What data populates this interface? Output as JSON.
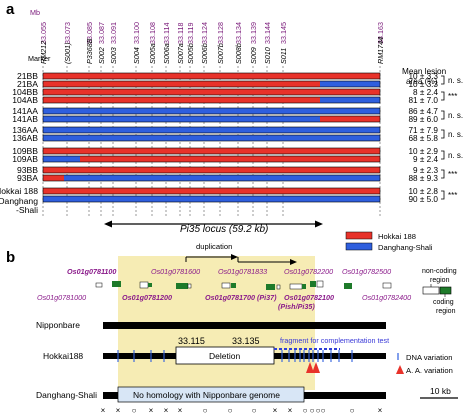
{
  "panel_a": {
    "label": "a",
    "mb_header": "Mb",
    "marker_header": "Marker",
    "lesion_header_line1": "Mean lesion",
    "lesion_header_line2": "area (%)",
    "markers": [
      {
        "mb": "33.055",
        "name": "RM212"
      },
      {
        "mb": "33.073",
        "name": "(S001)"
      },
      {
        "mb": "33.085",
        "name": "P3368B"
      },
      {
        "mb": "33.087",
        "name": "S002"
      },
      {
        "mb": "33.091",
        "name": "S003"
      },
      {
        "mb": "33.100",
        "name": "S004"
      },
      {
        "mb": "33.108",
        "name": "S005a"
      },
      {
        "mb": "33.114",
        "name": "S006a"
      },
      {
        "mb": "33.118",
        "name": "S007a"
      },
      {
        "mb": "33.119",
        "name": "S005b"
      },
      {
        "mb": "33.124",
        "name": "S006b"
      },
      {
        "mb": "33.128",
        "name": "S007b"
      },
      {
        "mb": "33.134",
        "name": "S008b"
      },
      {
        "mb": "33.139",
        "name": "S009"
      },
      {
        "mb": "33.144",
        "name": "S010"
      },
      {
        "mb": "33.145",
        "name": "S011"
      },
      {
        "mb": "33.163",
        "name": "RM1744"
      }
    ],
    "rows": [
      {
        "name": "21BB",
        "lesion": "10 ± 3.3"
      },
      {
        "name": "21BA",
        "lesion": "10 ± 3.3"
      },
      {
        "name": "104BB",
        "lesion": "8 ± 2.4"
      },
      {
        "name": "104AB",
        "lesion": "81 ± 7.0"
      },
      {
        "name": "141AA",
        "lesion": "86 ± 4.7"
      },
      {
        "name": "141AB",
        "lesion": "89 ± 6.0"
      },
      {
        "name": "136AA",
        "lesion": "71 ± 7.9"
      },
      {
        "name": "136AB",
        "lesion": "68 ± 5.8"
      },
      {
        "name": "109BB",
        "lesion": "10 ± 2.9"
      },
      {
        "name": "109AB",
        "lesion": "9 ± 2.4"
      },
      {
        "name": "93BB",
        "lesion": "9 ± 2.3"
      },
      {
        "name": "93BA",
        "lesion": "88 ± 9.3"
      },
      {
        "name": "Hokkai 188",
        "lesion": "10 ± 2.8"
      },
      {
        "name": "Danghang-Shali",
        "lesion": "90 ± 5.0"
      }
    ],
    "row_labels": {
      "hokkai_line1": "Hokkai 188",
      "dang_line1": "Danghang",
      "dang_line2": "-Shali"
    },
    "significance": [
      "n. s.",
      "***",
      "n. s.",
      "n. s.",
      "n. s.",
      "***",
      "***"
    ],
    "locus_label": "Pi35 locus (59.2 kb)",
    "legend": {
      "hokkai": "Hokkai 188",
      "dang": "Danghang-Shali",
      "hokkai_color": "#e8322a",
      "dang_color": "#2f5fde"
    }
  },
  "panel_b": {
    "label": "b",
    "duplication_label": "duplication",
    "genes_top": [
      "Os01g0781100",
      "Os01g0781600",
      "Os01g0781833",
      "Os01g0782200",
      "Os01g0782500"
    ],
    "genes_bottom": [
      "Os01g0781000",
      "Os01g0781200",
      "Os01g0781700 (Pi37)",
      "Os01g0782100",
      "Os01g0782400"
    ],
    "pish_label": "(Pish/Pi35)",
    "legend_noncoding_1": "non-coding",
    "legend_noncoding_2": "region",
    "legend_coding_1": "coding",
    "legend_coding_2": "region",
    "tracks": [
      "Nipponbare",
      "Hokkai188",
      "Danghang-Shali"
    ],
    "coord_left": "33.115",
    "coord_right": "33.135",
    "deletion_label": "Deletion",
    "fragment_label": "fragment for complementation test",
    "no_homology_label": "No homology with Nipponbare genome",
    "dna_variation": "DNA variation",
    "aa_variation": "A. A. variation",
    "scale_label": "10 kb",
    "bottom_marks": [
      "×",
      "×",
      "○",
      "×",
      "×",
      "×",
      "○",
      "○",
      "○",
      "×",
      "×",
      "○",
      "○",
      "○",
      "○",
      "○",
      "×"
    ]
  }
}
